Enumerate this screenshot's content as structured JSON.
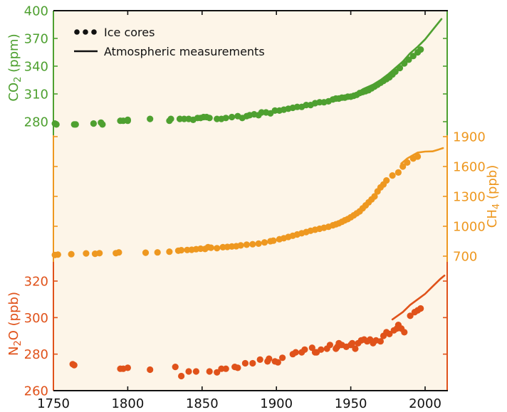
{
  "chart_data": {
    "type": "scatter",
    "title": "",
    "xlabel": "",
    "xlim": [
      1750,
      2015
    ],
    "x_ticks": [
      1750,
      1800,
      1850,
      1900,
      1950,
      2000
    ],
    "grid": false,
    "background_color": "#fdf5e8",
    "legend": {
      "placement": "top-left",
      "entries": [
        {
          "label": "Ice cores",
          "marker": "dots"
        },
        {
          "label": "Atmospheric measurements",
          "marker": "line"
        }
      ]
    },
    "panels": [
      {
        "id": "co2",
        "name": "CO2",
        "ylabel_main": "CO",
        "ylabel_sub": "2",
        "ylabel_unit": " (ppm)",
        "axis_side": "left",
        "color": "#4ea030",
        "ylim": [
          265,
          400
        ],
        "y_ticks": [
          280,
          310,
          340,
          370,
          400
        ],
        "ice_cores": [
          [
            1751,
            278
          ],
          [
            1752,
            277
          ],
          [
            1764,
            277
          ],
          [
            1765,
            277
          ],
          [
            1777,
            278
          ],
          [
            1782,
            279
          ],
          [
            1783,
            277
          ],
          [
            1795,
            281
          ],
          [
            1797,
            281
          ],
          [
            1800,
            281
          ],
          [
            1800,
            282
          ],
          [
            1815,
            283
          ],
          [
            1828,
            281
          ],
          [
            1829,
            283
          ],
          [
            1835,
            283
          ],
          [
            1838,
            283
          ],
          [
            1841,
            283
          ],
          [
            1844,
            282
          ],
          [
            1847,
            284
          ],
          [
            1849,
            284
          ],
          [
            1851,
            285
          ],
          [
            1853,
            285
          ],
          [
            1855,
            284
          ],
          [
            1860,
            283
          ],
          [
            1863,
            283
          ],
          [
            1866,
            284
          ],
          [
            1870,
            285
          ],
          [
            1874,
            286
          ],
          [
            1877,
            284
          ],
          [
            1880,
            286
          ],
          [
            1882,
            287
          ],
          [
            1885,
            288
          ],
          [
            1888,
            287
          ],
          [
            1890,
            290
          ],
          [
            1893,
            290
          ],
          [
            1896,
            289
          ],
          [
            1899,
            292
          ],
          [
            1902,
            292
          ],
          [
            1905,
            293
          ],
          [
            1908,
            294
          ],
          [
            1911,
            295
          ],
          [
            1914,
            296
          ],
          [
            1917,
            296
          ],
          [
            1920,
            298
          ],
          [
            1923,
            298
          ],
          [
            1926,
            300
          ],
          [
            1929,
            301
          ],
          [
            1932,
            301
          ],
          [
            1935,
            302
          ],
          [
            1938,
            304
          ],
          [
            1940,
            305
          ],
          [
            1942,
            305
          ],
          [
            1944,
            306
          ],
          [
            1946,
            306
          ],
          [
            1948,
            307
          ],
          [
            1950,
            307
          ],
          [
            1952,
            308
          ],
          [
            1954,
            309
          ],
          [
            1956,
            311
          ],
          [
            1958,
            312
          ],
          [
            1960,
            313
          ],
          [
            1962,
            314
          ],
          [
            1964,
            316
          ],
          [
            1966,
            318
          ],
          [
            1968,
            320
          ],
          [
            1970,
            322
          ],
          [
            1972,
            324
          ],
          [
            1974,
            326
          ],
          [
            1976,
            328
          ],
          [
            1978,
            331
          ],
          [
            1980,
            334
          ],
          [
            1983,
            338
          ],
          [
            1986,
            343
          ],
          [
            1989,
            347
          ],
          [
            1992,
            351
          ],
          [
            1995,
            355
          ],
          [
            1997,
            358
          ]
        ],
        "atmospheric": [
          [
            1958,
            315
          ],
          [
            1965,
            320
          ],
          [
            1970,
            325
          ],
          [
            1975,
            331
          ],
          [
            1980,
            338
          ],
          [
            1985,
            345
          ],
          [
            1990,
            354
          ],
          [
            1995,
            361
          ],
          [
            2000,
            369
          ],
          [
            2005,
            379
          ],
          [
            2011,
            391
          ]
        ]
      },
      {
        "id": "ch4",
        "name": "CH4",
        "ylabel_main": "CH",
        "ylabel_sub": "4",
        "ylabel_unit": " (ppb)",
        "axis_side": "right",
        "color": "#ee9820",
        "ylim": [
          640,
          1880
        ],
        "y_ticks": [
          700,
          1000,
          1300,
          1600,
          1900
        ],
        "ice_cores": [
          [
            1751,
            712
          ],
          [
            1753,
            716
          ],
          [
            1762,
            720
          ],
          [
            1772,
            728
          ],
          [
            1778,
            724
          ],
          [
            1781,
            730
          ],
          [
            1792,
            730
          ],
          [
            1794,
            738
          ],
          [
            1812,
            735
          ],
          [
            1820,
            738
          ],
          [
            1828,
            745
          ],
          [
            1834,
            755
          ],
          [
            1836,
            760
          ],
          [
            1840,
            762
          ],
          [
            1843,
            764
          ],
          [
            1846,
            770
          ],
          [
            1849,
            775
          ],
          [
            1852,
            772
          ],
          [
            1854,
            790
          ],
          [
            1856,
            785
          ],
          [
            1860,
            780
          ],
          [
            1864,
            790
          ],
          [
            1867,
            793
          ],
          [
            1870,
            797
          ],
          [
            1873,
            800
          ],
          [
            1876,
            808
          ],
          [
            1880,
            815
          ],
          [
            1884,
            820
          ],
          [
            1888,
            826
          ],
          [
            1892,
            838
          ],
          [
            1896,
            850
          ],
          [
            1898,
            856
          ],
          [
            1902,
            870
          ],
          [
            1905,
            880
          ],
          [
            1908,
            893
          ],
          [
            1911,
            905
          ],
          [
            1914,
            918
          ],
          [
            1917,
            930
          ],
          [
            1920,
            942
          ],
          [
            1923,
            955
          ],
          [
            1926,
            965
          ],
          [
            1929,
            975
          ],
          [
            1932,
            985
          ],
          [
            1935,
            995
          ],
          [
            1938,
            1010
          ],
          [
            1940,
            1020
          ],
          [
            1942,
            1030
          ],
          [
            1944,
            1045
          ],
          [
            1946,
            1060
          ],
          [
            1948,
            1072
          ],
          [
            1950,
            1090
          ],
          [
            1952,
            1110
          ],
          [
            1954,
            1130
          ],
          [
            1956,
            1150
          ],
          [
            1958,
            1180
          ],
          [
            1960,
            1210
          ],
          [
            1962,
            1240
          ],
          [
            1964,
            1270
          ],
          [
            1966,
            1300
          ],
          [
            1968,
            1350
          ],
          [
            1970,
            1390
          ],
          [
            1972,
            1420
          ],
          [
            1974,
            1460
          ],
          [
            1978,
            1510
          ],
          [
            1982,
            1540
          ],
          [
            1985,
            1600
          ],
          [
            1988,
            1640
          ],
          [
            1992,
            1680
          ],
          [
            1995,
            1700
          ]
        ],
        "atmospheric": [
          [
            1984,
            1630
          ],
          [
            1988,
            1680
          ],
          [
            1992,
            1715
          ],
          [
            1995,
            1740
          ],
          [
            2000,
            1750
          ],
          [
            2005,
            1752
          ],
          [
            2009,
            1770
          ],
          [
            2012,
            1785
          ]
        ]
      },
      {
        "id": "n2o",
        "name": "N2O",
        "ylabel_main": "N",
        "ylabel_sub": "2",
        "ylabel_unit": "O (ppb)",
        "axis_side": "left",
        "color": "#e0521a",
        "ylim": [
          260,
          327
        ],
        "y_ticks": [
          260,
          280,
          300,
          320
        ],
        "ice_cores": [
          [
            1763,
            274.5
          ],
          [
            1764,
            274
          ],
          [
            1795,
            272
          ],
          [
            1797,
            272
          ],
          [
            1800,
            272.5
          ],
          [
            1815,
            271.5
          ],
          [
            1832,
            273
          ],
          [
            1836,
            268
          ],
          [
            1841,
            270.5
          ],
          [
            1846,
            270.5
          ],
          [
            1855,
            270.5
          ],
          [
            1860,
            270
          ],
          [
            1863,
            272
          ],
          [
            1866,
            272
          ],
          [
            1872,
            273
          ],
          [
            1874,
            272.5
          ],
          [
            1879,
            275
          ],
          [
            1884,
            275
          ],
          [
            1889,
            277
          ],
          [
            1894,
            276
          ],
          [
            1895,
            277.5
          ],
          [
            1899,
            276
          ],
          [
            1901,
            275.5
          ],
          [
            1904,
            278
          ],
          [
            1911,
            280
          ],
          [
            1913,
            281
          ],
          [
            1917,
            281
          ],
          [
            1919,
            282.5
          ],
          [
            1924,
            283.5
          ],
          [
            1926,
            281
          ],
          [
            1927,
            281
          ],
          [
            1930,
            282.5
          ],
          [
            1934,
            283
          ],
          [
            1936,
            285
          ],
          [
            1940,
            283
          ],
          [
            1941,
            284
          ],
          [
            1942,
            286
          ],
          [
            1944,
            285
          ],
          [
            1947,
            284
          ],
          [
            1950,
            285
          ],
          [
            1951,
            286
          ],
          [
            1953,
            283
          ],
          [
            1955,
            286
          ],
          [
            1957,
            287.5
          ],
          [
            1959,
            288
          ],
          [
            1961,
            287
          ],
          [
            1963,
            288
          ],
          [
            1965,
            286
          ],
          [
            1967,
            287.5
          ],
          [
            1970,
            287
          ],
          [
            1972,
            290
          ],
          [
            1974,
            292
          ],
          [
            1976,
            291
          ],
          [
            1979,
            293
          ],
          [
            1981,
            294
          ],
          [
            1982,
            296
          ],
          [
            1984,
            294
          ],
          [
            1986,
            292
          ],
          [
            1990,
            301
          ],
          [
            1993,
            303
          ],
          [
            1995,
            304
          ],
          [
            1997,
            305
          ]
        ],
        "atmospheric": [
          [
            1978,
            299
          ],
          [
            1985,
            303
          ],
          [
            1990,
            307
          ],
          [
            1995,
            310
          ],
          [
            2000,
            313
          ],
          [
            2005,
            317
          ],
          [
            2010,
            321
          ],
          [
            2013,
            323
          ]
        ]
      }
    ]
  }
}
